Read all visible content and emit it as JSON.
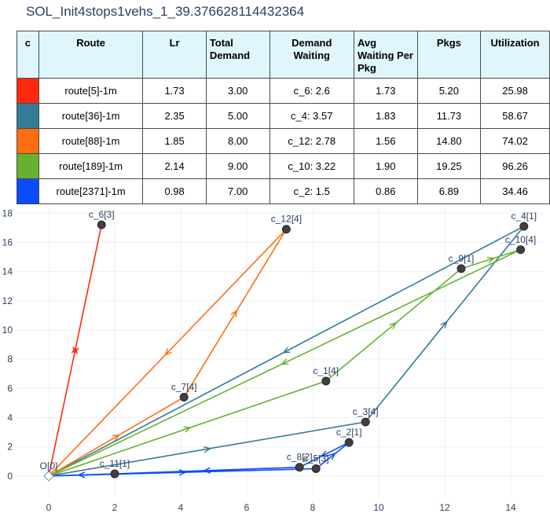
{
  "title": "SOL_Init4stops1vehs_1_39.376628114432364",
  "table": {
    "headers": [
      "c",
      "Route",
      "Lr",
      "Total Demand",
      "Demand Waiting",
      "Avg Waiting Per Pkg",
      "Pkgs",
      "Utilization"
    ],
    "rows": [
      {
        "color": "#ff2a0e",
        "route": "route[5]-1m",
        "lr": "1.73",
        "total_demand": "3.00",
        "demand_waiting": "c_6: 2.6",
        "avg_waiting": "1.73",
        "pkgs": "5.20",
        "utilization": "25.98"
      },
      {
        "color": "#347b98",
        "route": "route[36]-1m",
        "lr": "2.35",
        "total_demand": "5.00",
        "demand_waiting": "c_4: 3.57",
        "avg_waiting": "1.83",
        "pkgs": "11.73",
        "utilization": "58.67"
      },
      {
        "color": "#ff6e0e",
        "route": "route[88]-1m",
        "lr": "1.85",
        "total_demand": "8.00",
        "demand_waiting": "c_12: 2.78",
        "avg_waiting": "1.56",
        "pkgs": "14.80",
        "utilization": "74.02"
      },
      {
        "color": "#67b131",
        "route": "route[189]-1m",
        "lr": "2.14",
        "total_demand": "9.00",
        "demand_waiting": "c_10: 3.22",
        "avg_waiting": "1.90",
        "pkgs": "19.25",
        "utilization": "96.26"
      },
      {
        "color": "#0a4cff",
        "route": "route[2371]-1m",
        "lr": "0.98",
        "total_demand": "7.00",
        "demand_waiting": "c_2: 1.5",
        "avg_waiting": "0.86",
        "pkgs": "6.89",
        "utilization": "34.46"
      }
    ]
  },
  "chart_data": {
    "type": "scatter",
    "xlim": [
      -1,
      15
    ],
    "ylim": [
      -1.3,
      18.5
    ],
    "x_ticks": [
      0,
      2,
      4,
      6,
      8,
      10,
      12,
      14
    ],
    "y_ticks": [
      0,
      2,
      4,
      6,
      8,
      10,
      12,
      14,
      16,
      18
    ],
    "grid": true,
    "nodes": [
      {
        "label": "O[0]",
        "x": 0,
        "y": 0,
        "depot": true
      },
      {
        "label": "c_6[3]",
        "x": 1.6,
        "y": 17.2
      },
      {
        "label": "c_12[4]",
        "x": 7.2,
        "y": 16.9
      },
      {
        "label": "c_4[1]",
        "x": 14.4,
        "y": 17.1
      },
      {
        "label": "c_10[4]",
        "x": 14.3,
        "y": 15.5
      },
      {
        "label": "c_9[1]",
        "x": 12.5,
        "y": 14.2
      },
      {
        "label": "c_1[4]",
        "x": 8.4,
        "y": 6.5
      },
      {
        "label": "c_7[4]",
        "x": 4.1,
        "y": 5.4
      },
      {
        "label": "c_3[4]",
        "x": 9.6,
        "y": 3.7
      },
      {
        "label": "c_2[1]",
        "x": 9.1,
        "y": 2.3
      },
      {
        "label": "c_8[2]",
        "x": 7.6,
        "y": 0.6
      },
      {
        "label": "c_5[3]",
        "x": 8.1,
        "y": 0.5
      },
      {
        "label": "c_11[1]",
        "x": 2.0,
        "y": 0.15
      }
    ],
    "routes": [
      {
        "color": "#ff2a0e",
        "path": [
          [
            0,
            0
          ],
          [
            1.6,
            17.2
          ],
          [
            0,
            0
          ]
        ]
      },
      {
        "color": "#347b98",
        "path": [
          [
            0,
            0
          ],
          [
            9.6,
            3.7
          ],
          [
            14.4,
            17.1
          ],
          [
            0,
            0
          ]
        ]
      },
      {
        "color": "#ff6e0e",
        "path": [
          [
            0,
            0
          ],
          [
            4.1,
            5.4
          ],
          [
            7.2,
            16.9
          ],
          [
            0,
            0
          ]
        ]
      },
      {
        "color": "#67b131",
        "path": [
          [
            0,
            0
          ],
          [
            8.4,
            6.5
          ],
          [
            12.5,
            14.2
          ],
          [
            14.3,
            15.5
          ],
          [
            0,
            0
          ]
        ]
      },
      {
        "color": "#0a4cff",
        "path": [
          [
            0,
            0
          ],
          [
            8.1,
            0.5
          ],
          [
            9.1,
            2.3
          ],
          [
            7.6,
            0.6
          ],
          [
            2.0,
            0.15
          ],
          [
            0,
            0
          ]
        ]
      }
    ]
  }
}
